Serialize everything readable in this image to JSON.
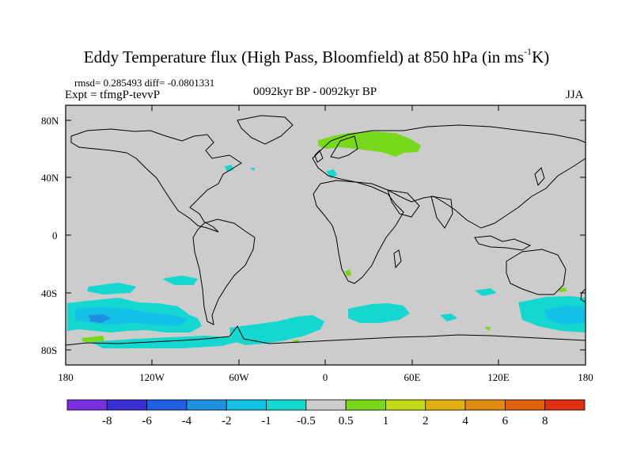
{
  "title": {
    "main": "Eddy Temperature flux (High Pass, Bloomfield) at 850 hPa (in ms",
    "sup": "-1",
    "end": "K)"
  },
  "stats": "rmsd= 0.285493 diff= -0.0801331",
  "expt": "Expt = tfmgP-tevvP",
  "period": "0092kyr BP - 0092kyr BP",
  "season": "JJA",
  "axes": {
    "lat_labels": [
      "80N",
      "40N",
      "0",
      "40S",
      "80S"
    ],
    "lon_labels": [
      "180",
      "120W",
      "60W",
      "0",
      "60E",
      "120E",
      "180"
    ]
  },
  "colorbar": {
    "colors": [
      "#7a2fe0",
      "#3a2fd0",
      "#1f5fe0",
      "#1f8fe0",
      "#14bfe8",
      "#14d8d0",
      "#cccccc",
      "#77d81c",
      "#c4d816",
      "#e0b010",
      "#e08a10",
      "#e06010",
      "#e03010"
    ],
    "labels": [
      "-8",
      "-6",
      "-4",
      "-2",
      "-1",
      "-0.5",
      "0.5",
      "1",
      "2",
      "4",
      "6",
      "8"
    ]
  },
  "colors": {
    "land_ocean": "#cccccc",
    "neg_light": "#14d8d0",
    "neg_mid": "#14bfe8",
    "neg_dark": "#1f8fe0",
    "pos_light": "#77d81c"
  }
}
